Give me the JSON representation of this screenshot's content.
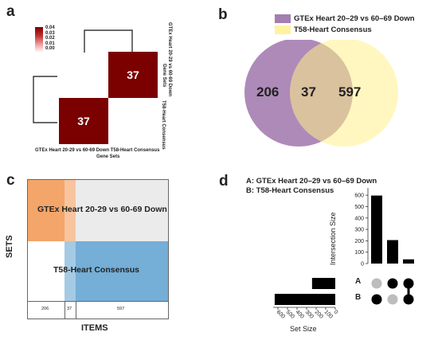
{
  "panels": {
    "a": "a",
    "b": "b",
    "c": "c",
    "d": "d"
  },
  "heatmap": {
    "legend_ticks": [
      "0.04",
      "0.03",
      "0.02",
      "0.01",
      "0.00"
    ],
    "cells": [
      "37",
      "37"
    ],
    "col_labels": [
      "GTEx Heart 20-29 vs 60-69 Down",
      "T58-Heart Consensus"
    ],
    "col_axis_title": "Gene Sets",
    "row_labels": [
      "GTEx Heart 20-29 vs 60-69 Down",
      "T58-Heart Consensus"
    ],
    "row_axis_title": "Gene Sets",
    "colors": {
      "cell": "#7b0000",
      "low": "#ffffff",
      "high": "#7b0000"
    }
  },
  "venn": {
    "legend": [
      {
        "label": "GTEx Heart 20–29 vs 60–69 Down",
        "color": "#a57db0"
      },
      {
        "label": "T58-Heart Consensus",
        "color": "#fff2a0"
      }
    ],
    "left_only": "206",
    "overlap": "37",
    "right_only": "597"
  },
  "matrix": {
    "set_a_label": "GTEx Heart 20-29 vs 60-69 Down",
    "set_b_label": "T58-Heart Consensus",
    "counts": [
      "206",
      "37",
      "597"
    ],
    "y_title": "SETS",
    "x_title": "ITEMS",
    "colors": {
      "set_a": "#f4a56a",
      "set_b": "#75aed6",
      "bg": "#ebebeb"
    }
  },
  "upset": {
    "legend_a": "A: GTEx Heart 20–29 vs 60–69 Down",
    "legend_b": "B: T58-Heart Consensus",
    "set_names": [
      "A",
      "B"
    ],
    "intersection_axis_title": "Intersection Size",
    "set_axis_title": "Set Size",
    "intersection_ticks": [
      "600",
      "500",
      "400",
      "300",
      "200",
      "100",
      "0"
    ],
    "set_size_ticks": [
      "600",
      "500",
      "400",
      "300",
      "200",
      "100",
      "0"
    ]
  },
  "chart_data": {
    "type": "bar",
    "categories": [
      "B only",
      "A only",
      "A ∩ B"
    ],
    "values": [
      597,
      206,
      37
    ],
    "set_sizes": {
      "A": 243,
      "B": 634
    },
    "ylabel": "Intersection Size",
    "ylim": [
      0,
      650
    ]
  }
}
